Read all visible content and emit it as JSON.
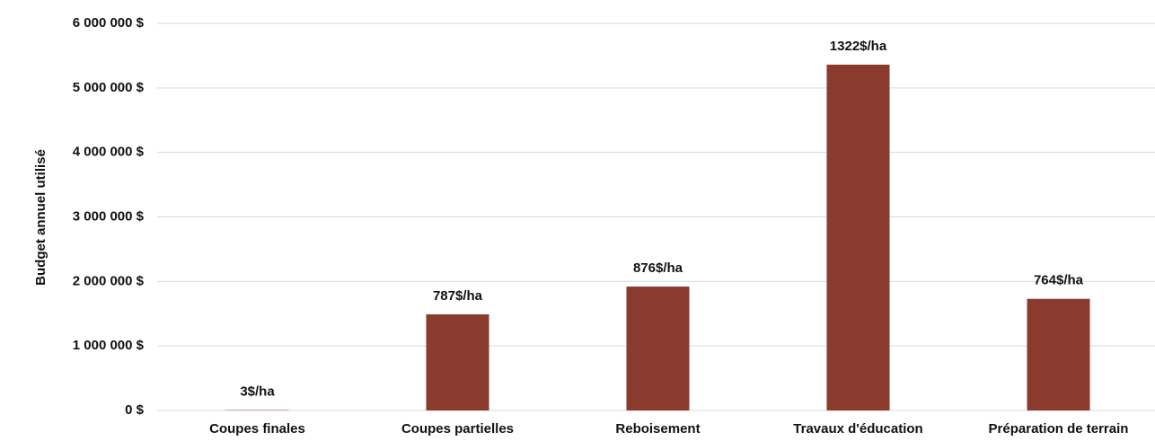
{
  "chart_data": {
    "type": "bar",
    "y_axis_label": "Budget annuel utilisé",
    "categories": [
      "Coupes finales",
      "Coupes partielles",
      "Reboisement",
      "Travaux d'éducation",
      "Préparation de terrain"
    ],
    "values": [
      5000,
      1490000,
      1920000,
      5360000,
      1730000
    ],
    "bar_labels": [
      "3$/ha",
      "787$/ha",
      "876$/ha",
      "1322$/ha",
      "764$/ha"
    ],
    "color": "#8b3a2e",
    "ylim": [
      0,
      6000000
    ],
    "yticks": [
      {
        "value": 0,
        "label": "0 $"
      },
      {
        "value": 1000000,
        "label": "1 000 000 $"
      },
      {
        "value": 2000000,
        "label": "2 000 000 $"
      },
      {
        "value": 3000000,
        "label": "3 000 000 $"
      },
      {
        "value": 4000000,
        "label": "4 000 000 $"
      },
      {
        "value": 5000000,
        "label": "5 000 000 $"
      },
      {
        "value": 6000000,
        "label": "6 000 000 $"
      }
    ],
    "grid": true
  }
}
